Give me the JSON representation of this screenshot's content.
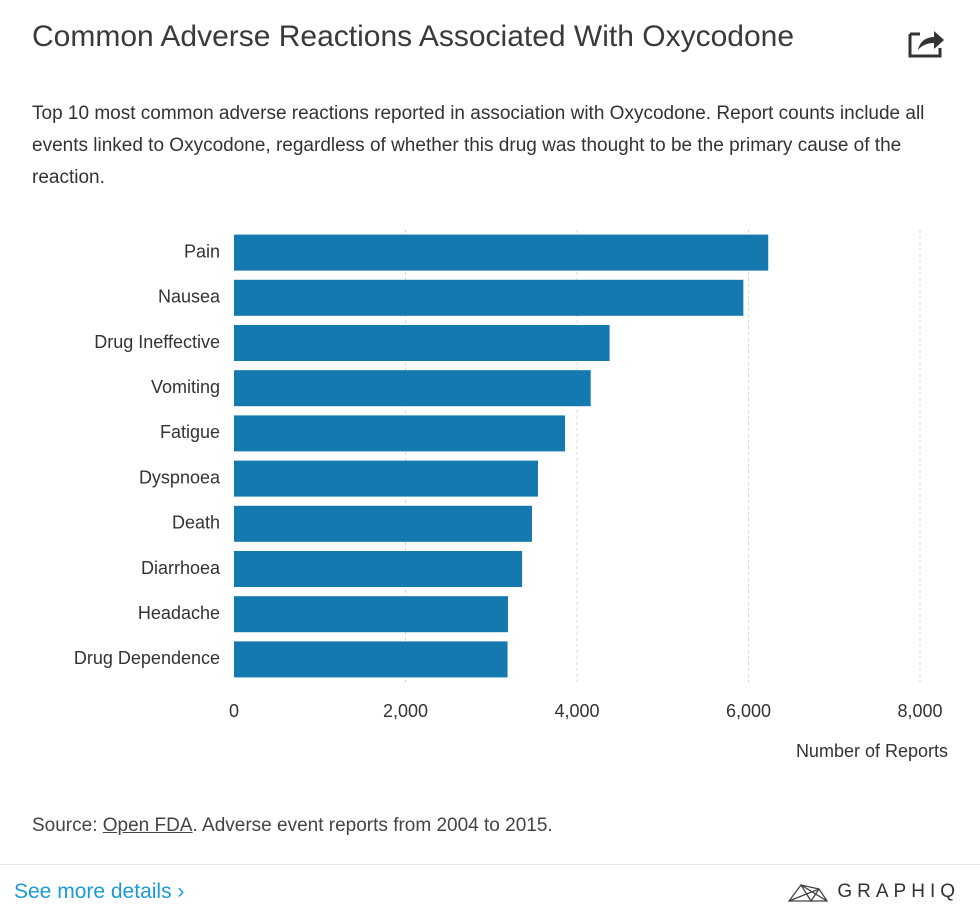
{
  "chart_data": {
    "type": "bar",
    "orientation": "horizontal",
    "title": "Common Adverse Reactions Associated With Oxycodone",
    "subtitle": "Top 10 most common adverse reactions reported in association with Oxycodone. Report counts include all events linked to Oxycodone, regardless of whether this drug was thought to be the primary cause of the reaction.",
    "categories": [
      "Pain",
      "Nausea",
      "Drug Ineffective",
      "Vomiting",
      "Fatigue",
      "Dyspnoea",
      "Death",
      "Diarrhoea",
      "Headache",
      "Drug Dependence"
    ],
    "values": [
      6230,
      5940,
      4380,
      4160,
      3860,
      3545,
      3475,
      3360,
      3195,
      3190
    ],
    "color": "#1479ae",
    "xlim": [
      0,
      8000
    ],
    "xticks": [
      0,
      {
        "value": 2000,
        "label": "2,000"
      },
      {
        "value": 4000,
        "label": "4,000"
      },
      {
        "value": 6000,
        "label": "6,000"
      },
      {
        "value": 8000,
        "label": "8,000"
      }
    ],
    "xlabel": "Number of Reports",
    "grid": true,
    "source_prefix": "Source:",
    "source_link": "Open FDA",
    "source_suffix": ". Adverse event reports from 2004 to 2015."
  },
  "footer": {
    "link": "See more details ›",
    "brand": "GRAPHIQ"
  }
}
